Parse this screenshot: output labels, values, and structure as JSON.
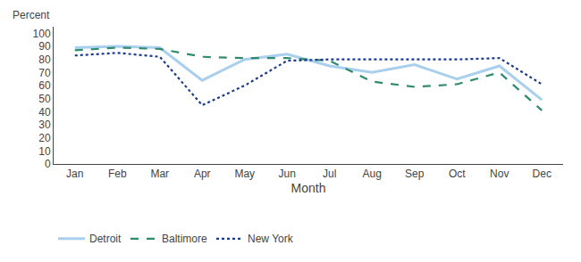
{
  "chart_data": {
    "type": "line",
    "x_label": "Month",
    "y_label": "Percent",
    "categories": [
      "Jan",
      "Feb",
      "Mar",
      "Apr",
      "May",
      "Jun",
      "Jul",
      "Aug",
      "Sep",
      "Oct",
      "Nov",
      "Dec"
    ],
    "series": [
      {
        "name": "Detroit",
        "color": "#a8d0ee",
        "line_style": "solid",
        "values": [
          89,
          90,
          89,
          64,
          80,
          84,
          75,
          70,
          76,
          65,
          75,
          49
        ]
      },
      {
        "name": "Baltimore",
        "color": "#2e8b6e",
        "line_style": "dashed",
        "values": [
          87,
          89,
          88,
          82,
          81,
          81,
          79,
          63,
          59,
          61,
          70,
          41
        ]
      },
      {
        "name": "New York",
        "color": "#1c3a8a",
        "line_style": "dotted",
        "values": [
          83,
          85,
          82,
          45,
          60,
          79,
          80,
          80,
          80,
          80,
          81,
          61
        ]
      }
    ],
    "ylim": [
      0,
      105
    ],
    "yticks": [
      0,
      10,
      20,
      30,
      40,
      50,
      60,
      70,
      80,
      90,
      100
    ],
    "grid": false,
    "legend": "bottom"
  }
}
